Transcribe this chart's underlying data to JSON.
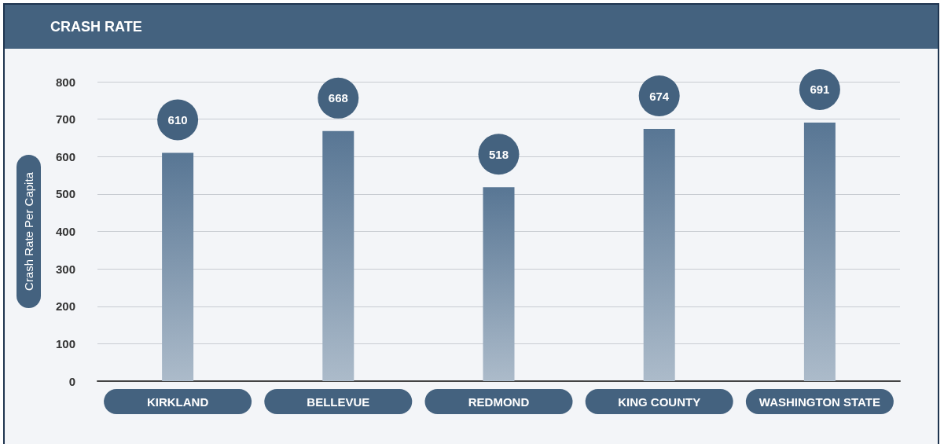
{
  "chart_data": {
    "type": "bar",
    "title": "CRASH RATE",
    "ylabel": "Crash Rate Per Capita",
    "categories": [
      "KIRKLAND",
      "BELLEVUE",
      "REDMOND",
      "KING COUNTY",
      "WASHINGTON STATE"
    ],
    "values": [
      610,
      668,
      518,
      674,
      691
    ],
    "color": "#587694",
    "ylim": [
      0,
      800
    ],
    "yticks": [
      0,
      100,
      200,
      300,
      400,
      500,
      600,
      700,
      800
    ],
    "grid": "y",
    "data_labels": true
  }
}
